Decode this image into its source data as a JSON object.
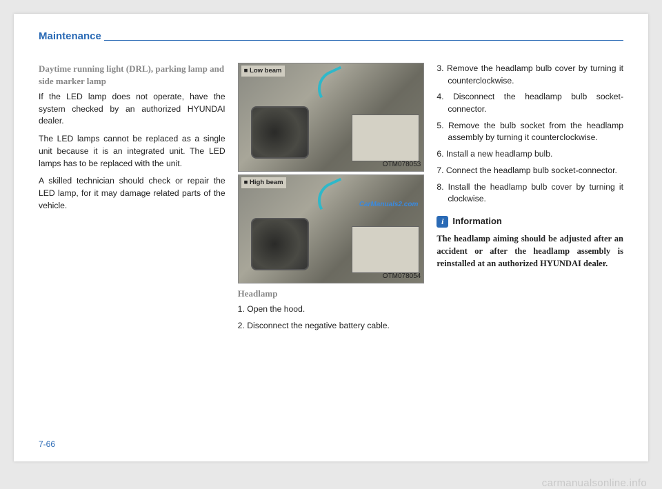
{
  "header": {
    "title": "Maintenance"
  },
  "page_number": "7-66",
  "footer_watermark": "carmanualsonline.info",
  "col1": {
    "subhead": "Daytime running light (DRL), parking lamp and side marker lamp",
    "p1": "If the LED lamp does not operate, have the system checked by an authorized HYUNDAI dealer.",
    "p2": "The LED lamps cannot be replaced as a single unit because it is an integrated unit. The LED lamps has to be replaced with the unit.",
    "p3": "A skilled technician should check or repair the LED lamp, for it may damage related parts of the vehicle."
  },
  "col2": {
    "fig1": {
      "label": "■ Low beam",
      "code": "OTM078053"
    },
    "fig2": {
      "label": "■ High beam",
      "code": "OTM078054",
      "watermark": "CarManuals2.com"
    },
    "heading": "Headlamp",
    "s1": "1. Open the hood.",
    "s2": "2. Disconnect the negative battery cable."
  },
  "col3": {
    "s3": "3. Remove the headlamp bulb cover by turning it counterclockwise.",
    "s4": "4. Disconnect the headlamp bulb socket-connector.",
    "s5": "5. Remove the bulb socket from the headlamp assembly by turning it counterclockwise.",
    "s6": "6. Install a new headlamp bulb.",
    "s7": "7. Connect the headlamp bulb socket-connector.",
    "s8": "8. Install the headlamp bulb cover by turning it clockwise.",
    "info_icon": "i",
    "info_title": "Information",
    "info_body": "The headlamp aiming should be adjusted after an accident or after the headlamp assembly is reinstalled at an authorized HYUNDAI dealer."
  }
}
